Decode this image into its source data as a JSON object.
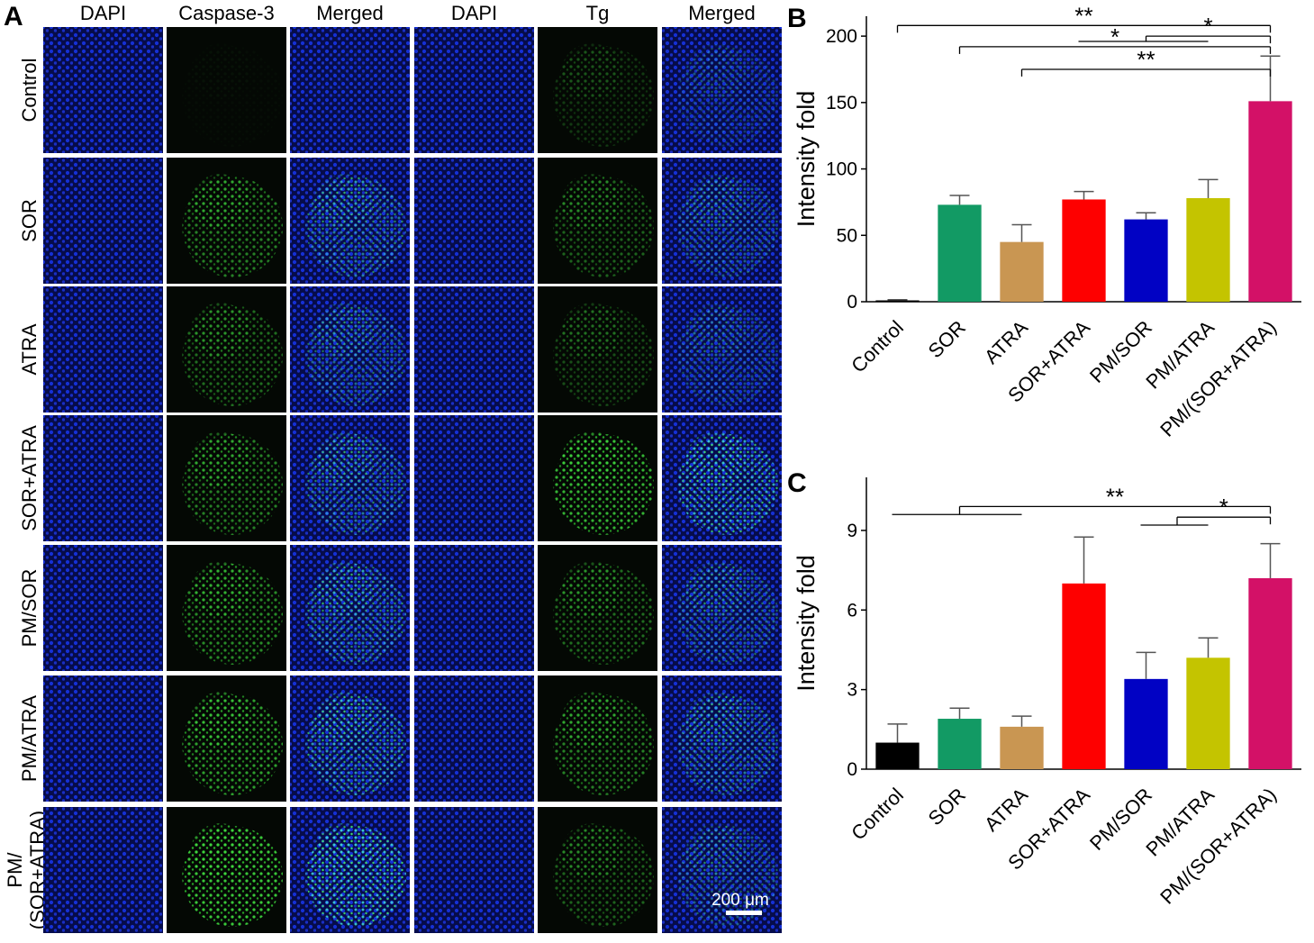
{
  "panels": {
    "a": "A",
    "b": "B",
    "c": "C"
  },
  "micrographs": {
    "columns": [
      "DAPI",
      "Caspase-3",
      "Merged",
      "DAPI",
      "Tg",
      "Merged"
    ],
    "rows": [
      {
        "label": [
          "Control"
        ],
        "caspase": 0.03,
        "tg": 0.25
      },
      {
        "label": [
          "SOR"
        ],
        "caspase": 0.6,
        "tg": 0.45
      },
      {
        "label": [
          "ATRA"
        ],
        "caspase": 0.5,
        "tg": 0.35
      },
      {
        "label": [
          "SOR+ATRA"
        ],
        "caspase": 0.6,
        "tg": 0.85
      },
      {
        "label": [
          "PM/SOR"
        ],
        "caspase": 0.65,
        "tg": 0.5
      },
      {
        "label": [
          "PM/ATRA"
        ],
        "caspase": 0.75,
        "tg": 0.6
      },
      {
        "label": [
          "PM/",
          "(SOR+ATRA)"
        ],
        "caspase": 0.95,
        "tg": 0.45
      }
    ],
    "scale_bar": "200 μm"
  },
  "chart_data": [
    {
      "type": "bar",
      "panel": "B",
      "categories": [
        "Control",
        "SOR",
        "ATRA",
        "SOR+ATRA",
        "PM/SOR",
        "PM/ATRA",
        "PM/(SOR+ATRA)"
      ],
      "values": [
        1,
        73,
        45,
        77,
        62,
        78,
        151
      ],
      "errors": [
        0.5,
        7,
        13,
        6,
        5,
        14,
        34
      ],
      "colors": [
        "#000000",
        "#129a64",
        "#c99652",
        "#fe0000",
        "#0102c4",
        "#c4c400",
        "#d31167"
      ],
      "title": "",
      "xlabel": "",
      "ylabel": "Intensity fold",
      "ylim": [
        0,
        215
      ],
      "yticks": [
        0,
        50,
        100,
        150,
        200
      ],
      "grid": false,
      "significance": [
        {
          "label": "**",
          "from": [
            0
          ],
          "to": 6,
          "y": 208
        },
        {
          "label": "*",
          "from": [
            1
          ],
          "to": 6,
          "y": 192
        },
        {
          "label": "**",
          "from": [
            2
          ],
          "to": 6,
          "y": 175
        },
        {
          "label": "*",
          "from": [
            3,
            5
          ],
          "to": 6,
          "y": 200,
          "ylow": 196
        }
      ]
    },
    {
      "type": "bar",
      "panel": "C",
      "categories": [
        "Control",
        "SOR",
        "ATRA",
        "SOR+ATRA",
        "PM/SOR",
        "PM/ATRA",
        "PM/(SOR+ATRA)"
      ],
      "values": [
        1.0,
        1.9,
        1.6,
        7.0,
        3.4,
        4.2,
        7.2
      ],
      "errors": [
        0.7,
        0.4,
        0.4,
        1.75,
        1.0,
        0.75,
        1.3
      ],
      "colors": [
        "#000000",
        "#129a64",
        "#c99652",
        "#fe0000",
        "#0102c4",
        "#c4c400",
        "#d31167"
      ],
      "title": "",
      "xlabel": "",
      "ylabel": "Intensity fold",
      "ylim": [
        0,
        11
      ],
      "yticks": [
        0,
        3,
        6,
        9
      ],
      "grid": false,
      "significance": [
        {
          "label": "**",
          "from": [
            0,
            2
          ],
          "to": 6,
          "y": 9.9,
          "ylow": 9.6
        },
        {
          "label": "*",
          "from": [
            4,
            5
          ],
          "to": 6,
          "y": 9.5,
          "ylow": 9.2
        }
      ]
    }
  ]
}
